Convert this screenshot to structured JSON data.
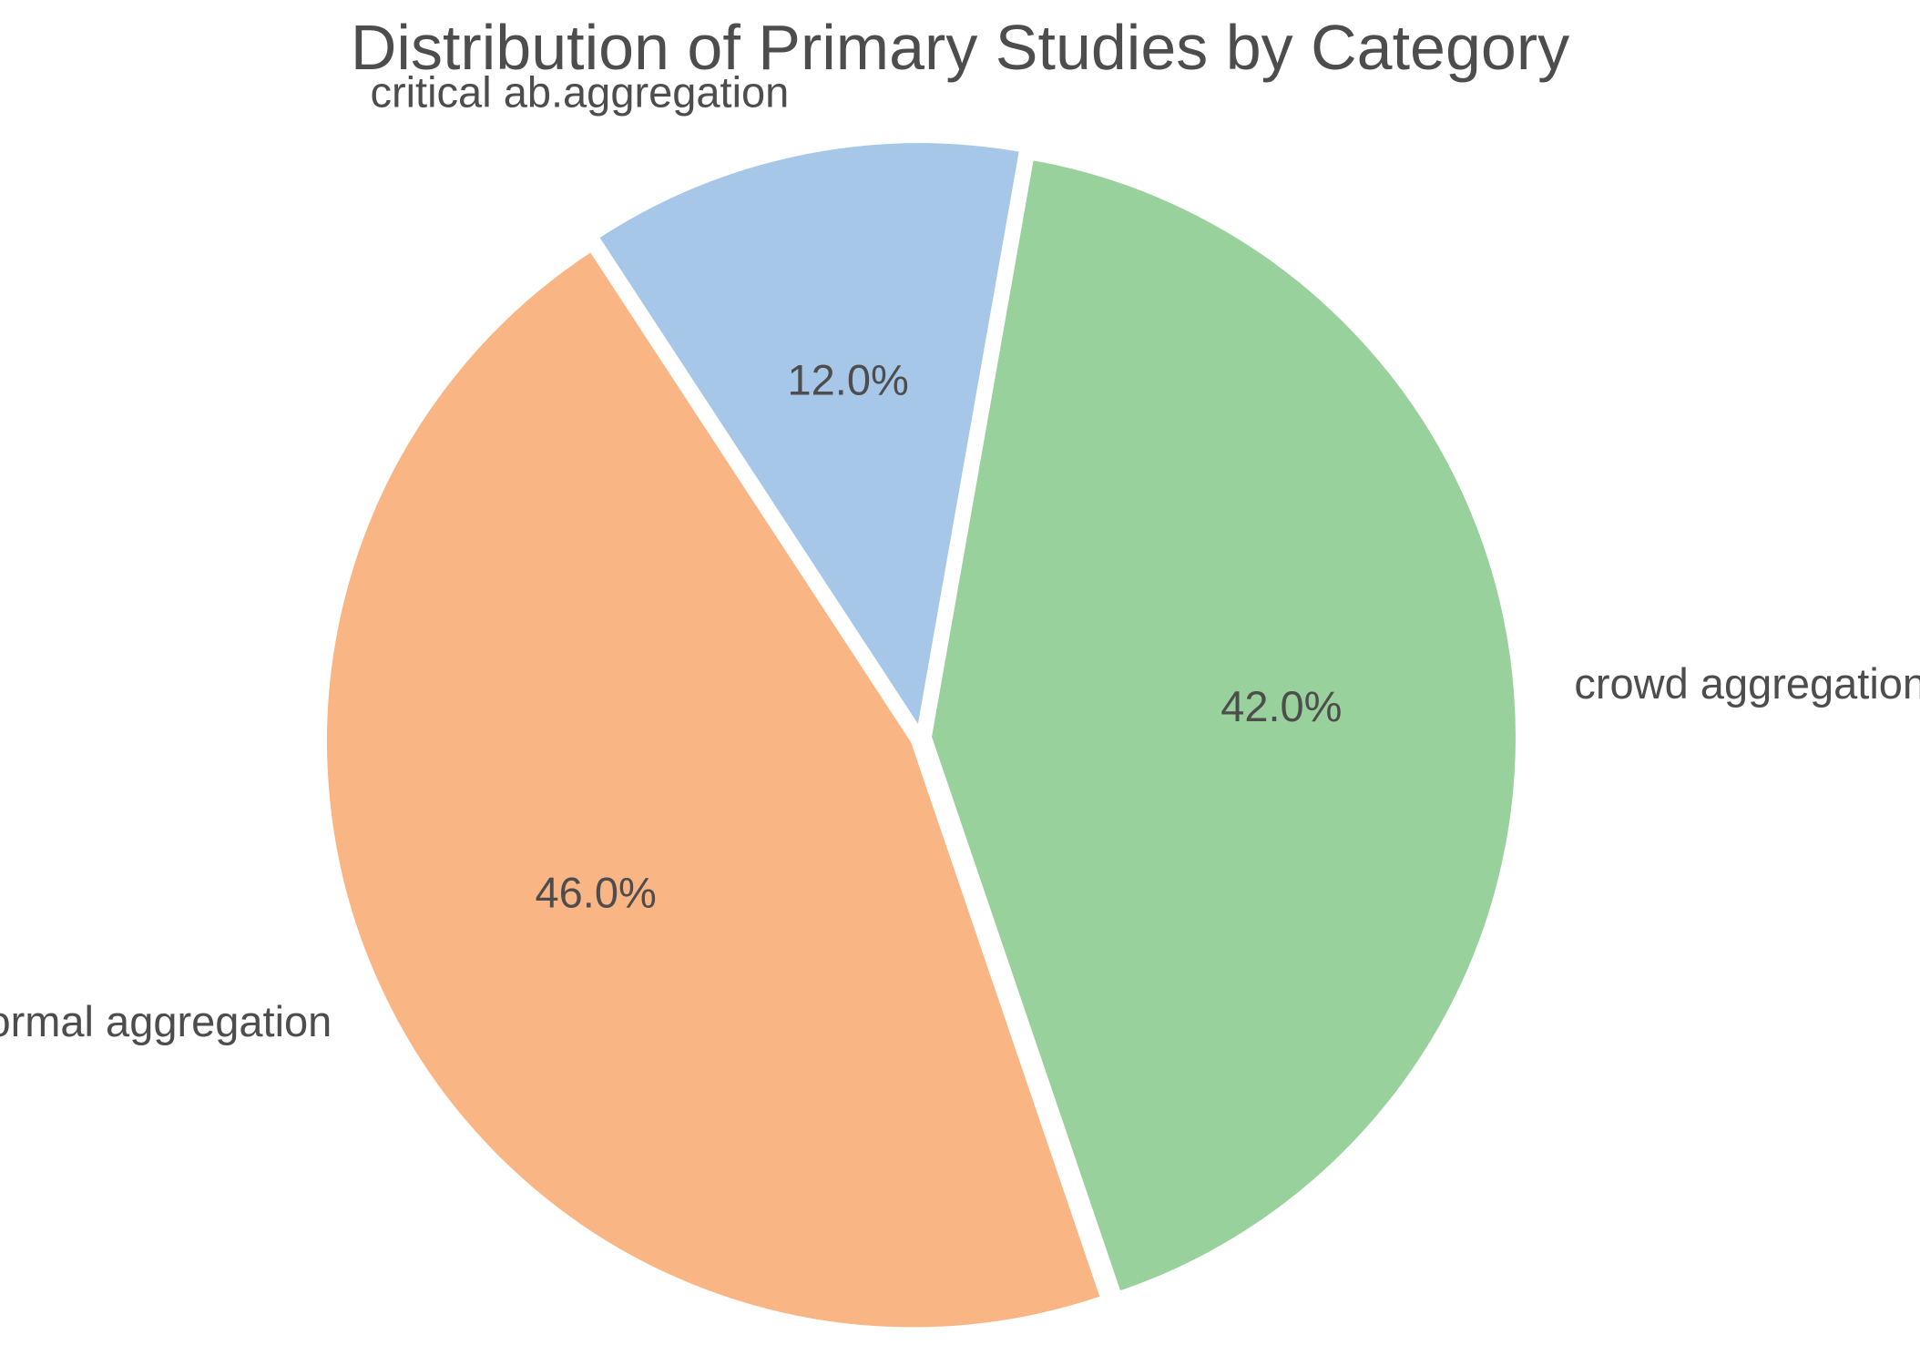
{
  "chart_data": {
    "type": "pie",
    "title": "Distribution of Primary Studies by Category",
    "categories": [
      "crowd aggregation",
      "abnormal aggregation",
      "critical ab.aggregation"
    ],
    "values": [
      42.0,
      46.0,
      12.0
    ],
    "percent_labels": [
      "42.0%",
      "46.0%",
      "12.0%"
    ],
    "colors": [
      "#99d19c",
      "#fab584",
      "#a7c7e8"
    ],
    "explode": true,
    "edge_color": "#ffffff",
    "start_angle_deg": 80,
    "direction": "clockwise"
  }
}
